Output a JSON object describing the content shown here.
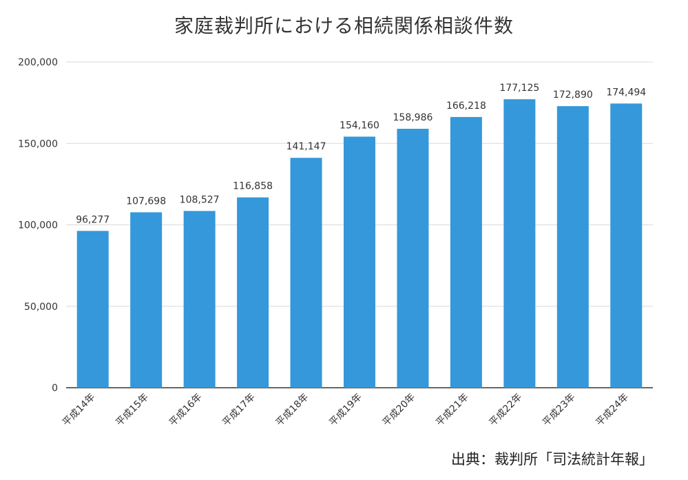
{
  "chart_data": {
    "type": "bar",
    "title": "家庭裁判所における相続関係相談件数",
    "categories": [
      "平成14年",
      "平成15年",
      "平成16年",
      "平成17年",
      "平成18年",
      "平成19年",
      "平成20年",
      "平成21年",
      "平成22年",
      "平成23年",
      "平成24年"
    ],
    "values": [
      96277,
      107698,
      108527,
      116858,
      141147,
      154160,
      158986,
      166218,
      177125,
      172890,
      174494
    ],
    "data_labels": [
      "96,277",
      "107,698",
      "108,527",
      "116,858",
      "141,147",
      "154,160",
      "158,986",
      "166,218",
      "177,125",
      "172,890",
      "174,494"
    ],
    "yticks": [
      0,
      50000,
      100000,
      150000,
      200000
    ],
    "ytick_labels": [
      "0",
      "50,000",
      "100,000",
      "150,000",
      "200,000"
    ],
    "ylim": [
      0,
      200000
    ],
    "xlabel": "",
    "ylabel": "",
    "grid": true,
    "legend": "none",
    "bar_color": "#3498db",
    "grid_color": "#d9d9d9",
    "source": "出典：裁判所「司法統計年報」"
  }
}
